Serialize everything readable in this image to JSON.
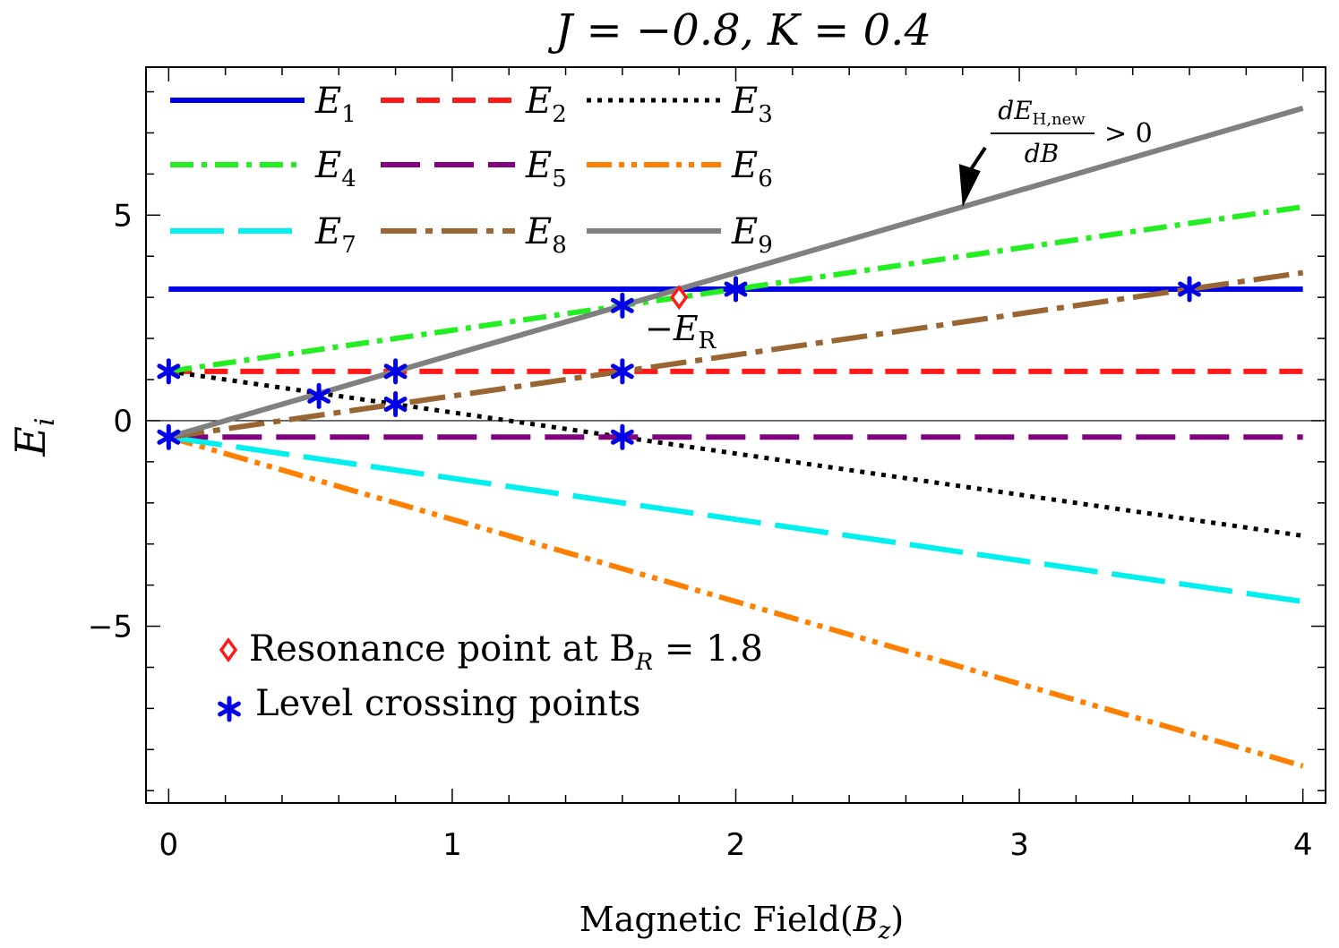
{
  "chart_data": {
    "type": "line",
    "title": "J = −0.8, K = 0.4",
    "xlabel": "Magnetic Field(Bz)",
    "ylabel": "Ei",
    "xlim": [
      -0.08,
      4.08
    ],
    "ylim": [
      -9.3,
      8.6
    ],
    "xticks": [
      0,
      1,
      2,
      3,
      4
    ],
    "yticks": [
      -5,
      0,
      5
    ],
    "tick_labels": {
      "x": [
        "0",
        "1",
        "2",
        "3",
        "4"
      ],
      "y": [
        "−5",
        "0",
        "5"
      ]
    },
    "zero_line": true,
    "legend_position": "top-left",
    "series": [
      {
        "name": "E1",
        "label_main": "E",
        "label_sub": "1",
        "color": "#0000e6",
        "dash": "solid",
        "x": [
          0,
          4
        ],
        "y": [
          3.2,
          3.2
        ]
      },
      {
        "name": "E2",
        "label_main": "E",
        "label_sub": "2",
        "color": "#ff1a1a",
        "dash": "dashed",
        "x": [
          0,
          4
        ],
        "y": [
          1.2,
          1.2
        ]
      },
      {
        "name": "E3",
        "label_main": "E",
        "label_sub": "3",
        "color": "#000000",
        "dash": "dotted",
        "x": [
          0,
          4
        ],
        "y": [
          1.2,
          -2.8
        ]
      },
      {
        "name": "E4",
        "label_main": "E",
        "label_sub": "4",
        "color": "#22ee22",
        "dash": "dashdot",
        "x": [
          0,
          4
        ],
        "y": [
          1.2,
          5.2
        ]
      },
      {
        "name": "E5",
        "label_main": "E",
        "label_sub": "5",
        "color": "#800080",
        "dash": "longdash",
        "x": [
          0,
          4
        ],
        "y": [
          -0.4,
          -0.4
        ]
      },
      {
        "name": "E6",
        "label_main": "E",
        "label_sub": "6",
        "color": "#ff8000",
        "dash": "dashdotdot",
        "x": [
          0,
          4
        ],
        "y": [
          -0.4,
          -8.4
        ]
      },
      {
        "name": "E7",
        "label_main": "E",
        "label_sub": "7",
        "color": "#00f0f0",
        "dash": "longdash2",
        "x": [
          0,
          4
        ],
        "y": [
          -0.4,
          -4.4
        ]
      },
      {
        "name": "E8",
        "label_main": "E",
        "label_sub": "8",
        "color": "#996633",
        "dash": "longdashdot",
        "x": [
          0,
          4
        ],
        "y": [
          -0.4,
          3.6
        ]
      },
      {
        "name": "E9",
        "label_main": "E",
        "label_sub": "9",
        "color": "#808080",
        "dash": "solid",
        "x": [
          0,
          4
        ],
        "y": [
          -0.4,
          7.6
        ]
      }
    ],
    "level_crossing_points": [
      {
        "x": 0,
        "y": 1.2
      },
      {
        "x": 0,
        "y": -0.4
      },
      {
        "x": 0.53,
        "y": 0.6
      },
      {
        "x": 0.8,
        "y": 1.2
      },
      {
        "x": 0.8,
        "y": 0.4
      },
      {
        "x": 1.6,
        "y": 2.8
      },
      {
        "x": 1.6,
        "y": 1.2
      },
      {
        "x": 1.6,
        "y": -0.4
      },
      {
        "x": 2.0,
        "y": 3.2
      },
      {
        "x": 3.6,
        "y": 3.2
      }
    ],
    "resonance_point": {
      "x": 1.8,
      "y": 3.0
    },
    "annotations": {
      "resonance_label": "−E",
      "resonance_label_sub": "R",
      "derivative_numerator": "dE",
      "derivative_numerator_sub": "H,new",
      "derivative_denominator": "dB",
      "derivative_rhs": "> 0",
      "derivative_arrow_target": {
        "x": 2.8,
        "y": 5.2
      }
    },
    "bottom_legend": {
      "resonance_text": "Resonance point at B",
      "resonance_sub": "R",
      "resonance_value": " = 1.8",
      "crossing_text": "Level crossing points"
    }
  }
}
